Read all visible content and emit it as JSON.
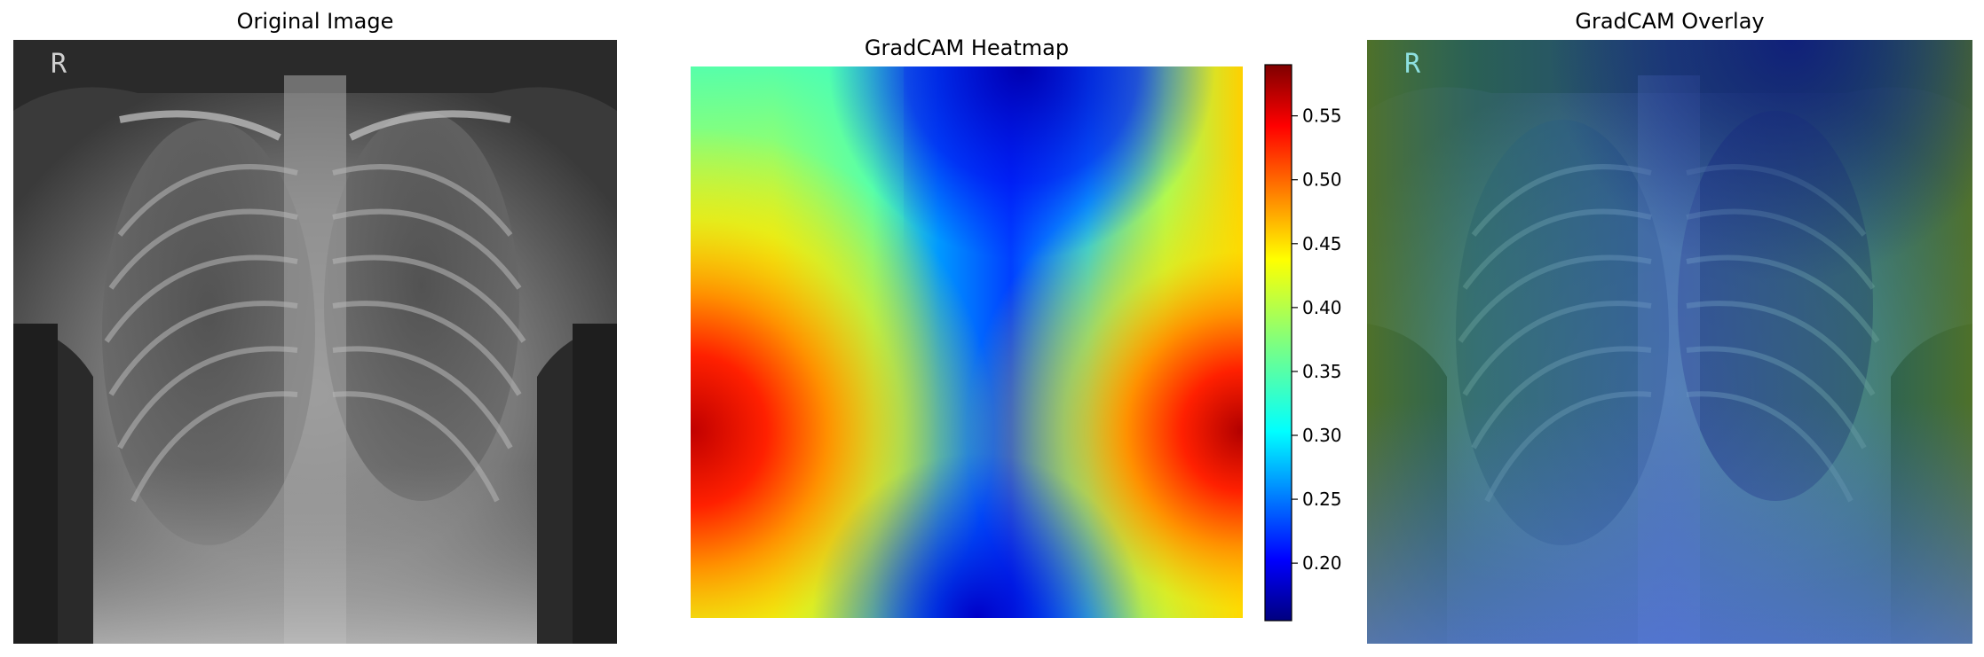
{
  "panels": {
    "original": {
      "title": "Original Image",
      "marker_letter": "R"
    },
    "heatmap": {
      "title": "GradCAM Heatmap"
    },
    "overlay": {
      "title": "GradCAM Overlay",
      "marker_letter": "R"
    }
  },
  "colorbar": {
    "colormap": "jet",
    "range": [
      0.155,
      0.59
    ],
    "ticks": [
      "0.20",
      "0.25",
      "0.30",
      "0.35",
      "0.40",
      "0.45",
      "0.50",
      "0.55"
    ]
  }
}
